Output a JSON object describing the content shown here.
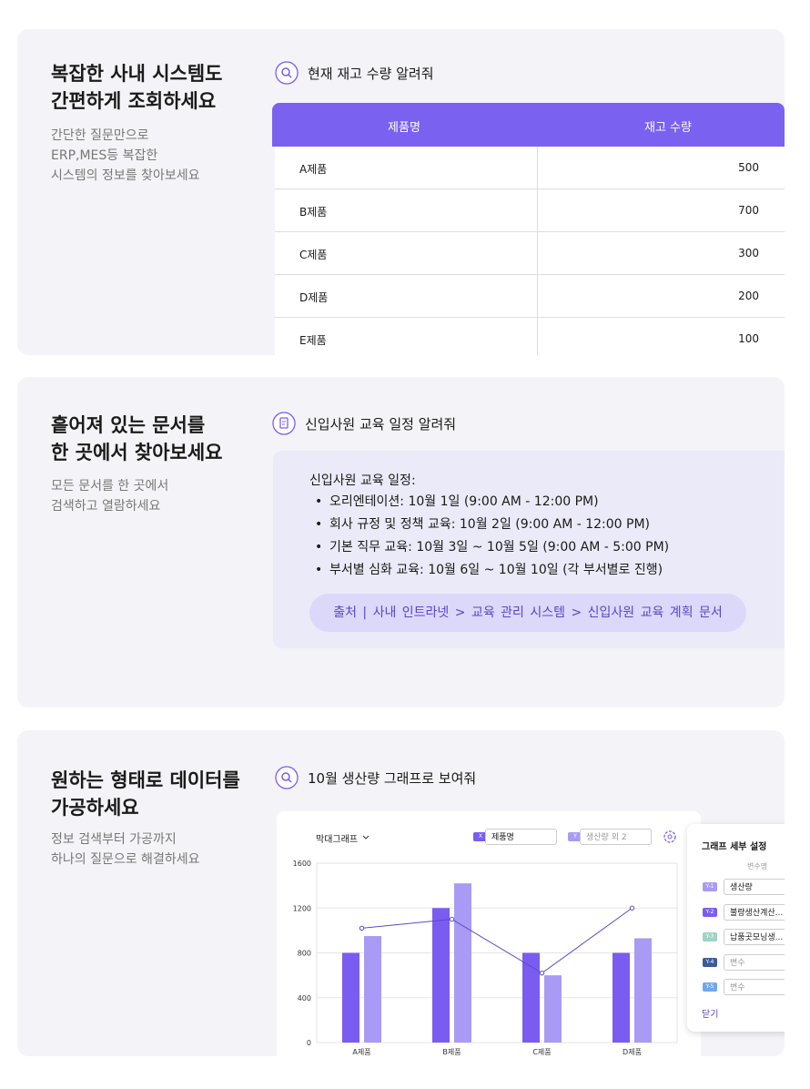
{
  "sections": [
    {
      "title": [
        "복잡한 사내 시스템도",
        "간편하게 조회하세요"
      ],
      "description": [
        "간단한 질문만으로",
        "ERP,MES등 복잡한",
        "시스템의 정보를 찾아보세요"
      ],
      "query": "현재 재고 수량 알려줘",
      "table": {
        "header": [
          "제품명",
          "재고 수량"
        ],
        "rows": [
          [
            "A제품",
            500
          ],
          [
            "B제품",
            700
          ],
          [
            "C제품",
            300
          ],
          [
            "D제품",
            200
          ],
          [
            "E제품",
            100
          ]
        ]
      }
    },
    {
      "title": [
        "흩어져 있는 문서를",
        "한 곳에서 찾아보세요"
      ],
      "description": [
        "모든 문서를 한 곳에서",
        "검색하고 열람하세요"
      ],
      "query": "신입사원 교육 일정 알려줘",
      "answer": {
        "heading": "신입사원 교육 일정:",
        "items": [
          "오리엔테이션: 10월 1일 (9:00 AM - 12:00 PM)",
          "회사 규정 및 정책 교육: 10월 2일 (9:00 AM - 12:00 PM)",
          "기본 직무 교육: 10월 3일 ~ 10월 5일 (9:00 AM - 5:00 PM)",
          "부서별 심화 교육: 10월 6일 ~ 10월 10일 (각 부서별로 진행)"
        ],
        "source": "출처 | 사내 인트라넷 > 교육 관리 시스템 > 신입사원 교육 계획 문서"
      }
    },
    {
      "title": [
        "원하는 형태로 데이터를",
        "가공하세요"
      ],
      "description": [
        "정보 검색부터 가공까지",
        "하나의 질문으로 해결하세요"
      ],
      "query": "10월 생산량 그래프로 보여줘",
      "controls": {
        "chart_type": "막대그래프",
        "x_chip": "X",
        "x_field": "제품명",
        "y_chip": "Y",
        "y_field": "생산량 외 2"
      },
      "settings": {
        "title": "그래프 세부 설정",
        "column": "변수명",
        "chips": [
          "Y-1",
          "Y-2",
          "Y-3",
          "Y-4",
          "Y-5"
        ],
        "placeholder": "변수",
        "close": "닫기"
      }
    }
  ],
  "chart_data": {
    "type": "bar",
    "categories": [
      "A제품",
      "B제품",
      "C제품",
      "D제품"
    ],
    "series": [
      {
        "name": "생산량",
        "color": "#7b5cf0",
        "values": [
          800,
          1200,
          800,
          800
        ]
      },
      {
        "name": "불량생산계산...",
        "color": "#a99bf5",
        "values": [
          950,
          1420,
          600,
          930
        ]
      },
      {
        "name": "납품곳모닝생...",
        "color": "#5b4bc8",
        "type": "line",
        "values": [
          1020,
          1100,
          620,
          1200
        ]
      }
    ],
    "ylim": [
      0,
      1600
    ],
    "yticks": [
      0,
      400,
      800,
      1200,
      1600
    ],
    "grid": true
  }
}
